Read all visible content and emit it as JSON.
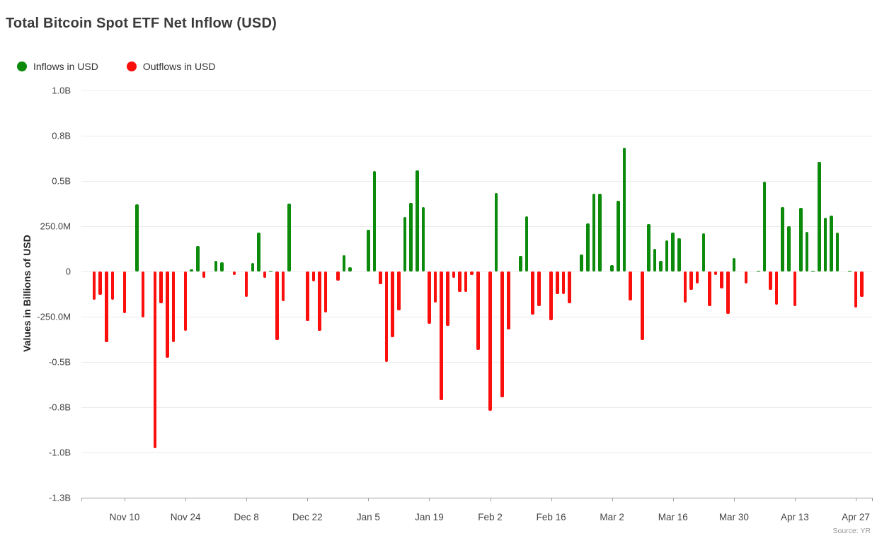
{
  "title": "Total Bitcoin Spot ETF Net Inflow (USD)",
  "legend": {
    "items": [
      {
        "id": "inflows",
        "label": "Inflows in USD",
        "color": "#0b8a0b"
      },
      {
        "id": "outflows",
        "label": "Outflows in USD",
        "color": "#fa0f0c"
      }
    ]
  },
  "y_axis": {
    "title": "Values in Billions of USD",
    "ticks": [
      {
        "label": "1.0B",
        "value": 1000
      },
      {
        "label": "0.8B",
        "value": 750
      },
      {
        "label": "0.5B",
        "value": 500
      },
      {
        "label": "250.0M",
        "value": 250
      },
      {
        "label": "0",
        "value": 0
      },
      {
        "label": "-250.0M",
        "value": -250
      },
      {
        "label": "-0.5B",
        "value": -500
      },
      {
        "label": "-0.8B",
        "value": -750
      },
      {
        "label": "-1.0B",
        "value": -1000
      },
      {
        "label": "-1.3B",
        "value": -1250
      }
    ]
  },
  "x_axis": {
    "ticks": [
      {
        "label": "Nov 10",
        "index": 5
      },
      {
        "label": "Nov 24",
        "index": 15
      },
      {
        "label": "Dec 8",
        "index": 25
      },
      {
        "label": "Dec 22",
        "index": 35
      },
      {
        "label": "Jan 5",
        "index": 45
      },
      {
        "label": "Jan 19",
        "index": 55
      },
      {
        "label": "Feb 2",
        "index": 65
      },
      {
        "label": "Feb 16",
        "index": 75
      },
      {
        "label": "Mar 2",
        "index": 85
      },
      {
        "label": "Mar 16",
        "index": 95
      },
      {
        "label": "Mar 30",
        "index": 105
      },
      {
        "label": "Apr 13",
        "index": 115
      },
      {
        "label": "Apr 27",
        "index": 125
      }
    ]
  },
  "source": "Source: YR",
  "chart_data": {
    "type": "bar",
    "unit": "millions of USD",
    "inflow_color": "#0b8a0b",
    "outflow_color": "#fa0f0c",
    "ylim": [
      -1250,
      1000
    ],
    "grid": true,
    "legend_position": "top-left",
    "bars": [
      {
        "date": "Nov 3",
        "value": -155
      },
      {
        "date": "Nov 4",
        "value": -130
      },
      {
        "date": "Nov 5",
        "value": -390
      },
      {
        "date": "Nov 6",
        "value": -155
      },
      {
        "date": "Nov 7",
        "value": 0
      },
      {
        "date": "Nov 10",
        "value": -230
      },
      {
        "date": "Nov 11",
        "value": 0
      },
      {
        "date": "Nov 12",
        "value": 370
      },
      {
        "date": "Nov 13",
        "value": -255
      },
      {
        "date": "Nov 14",
        "value": 0
      },
      {
        "date": "Nov 17",
        "value": -975
      },
      {
        "date": "Nov 18",
        "value": -175
      },
      {
        "date": "Nov 19",
        "value": -475
      },
      {
        "date": "Nov 20",
        "value": -390
      },
      {
        "date": "Nov 21",
        "value": 0
      },
      {
        "date": "Nov 24",
        "value": -330
      },
      {
        "date": "Nov 25",
        "value": 10
      },
      {
        "date": "Nov 26",
        "value": 140
      },
      {
        "date": "Nov 27",
        "value": -35
      },
      {
        "date": "Nov 28",
        "value": 0
      },
      {
        "date": "Dec 1",
        "value": 60
      },
      {
        "date": "Dec 2",
        "value": 50
      },
      {
        "date": "Dec 3",
        "value": 0
      },
      {
        "date": "Dec 4",
        "value": -20
      },
      {
        "date": "Dec 5",
        "value": 0
      },
      {
        "date": "Dec 8",
        "value": -140
      },
      {
        "date": "Dec 9",
        "value": 45
      },
      {
        "date": "Dec 10",
        "value": 215
      },
      {
        "date": "Dec 11",
        "value": -35
      },
      {
        "date": "Dec 12",
        "value": 5
      },
      {
        "date": "Dec 15",
        "value": -380
      },
      {
        "date": "Dec 16",
        "value": -165
      },
      {
        "date": "Dec 17",
        "value": 375
      },
      {
        "date": "Dec 18",
        "value": 0
      },
      {
        "date": "Dec 19",
        "value": 0
      },
      {
        "date": "Dec 22",
        "value": -275
      },
      {
        "date": "Dec 23",
        "value": -55
      },
      {
        "date": "Dec 24",
        "value": -330
      },
      {
        "date": "Dec 25",
        "value": -225
      },
      {
        "date": "Dec 26",
        "value": 0
      },
      {
        "date": "Dec 29",
        "value": -50
      },
      {
        "date": "Dec 30",
        "value": 90
      },
      {
        "date": "Dec 31",
        "value": 25
      },
      {
        "date": "Jan 1",
        "value": 0
      },
      {
        "date": "Jan 2",
        "value": 0
      },
      {
        "date": "Jan 5",
        "value": 230
      },
      {
        "date": "Jan 6",
        "value": 555
      },
      {
        "date": "Jan 7",
        "value": -70
      },
      {
        "date": "Jan 8",
        "value": -500
      },
      {
        "date": "Jan 9",
        "value": -365
      },
      {
        "date": "Jan 12",
        "value": -215
      },
      {
        "date": "Jan 13",
        "value": 300
      },
      {
        "date": "Jan 14",
        "value": 380
      },
      {
        "date": "Jan 15",
        "value": 560
      },
      {
        "date": "Jan 16",
        "value": 355
      },
      {
        "date": "Jan 19",
        "value": -290
      },
      {
        "date": "Jan 20",
        "value": -170
      },
      {
        "date": "Jan 21",
        "value": -710
      },
      {
        "date": "Jan 22",
        "value": -300
      },
      {
        "date": "Jan 23",
        "value": -35
      },
      {
        "date": "Jan 26",
        "value": -115
      },
      {
        "date": "Jan 27",
        "value": -115
      },
      {
        "date": "Jan 28",
        "value": -20
      },
      {
        "date": "Jan 29",
        "value": -435
      },
      {
        "date": "Jan 30",
        "value": 0
      },
      {
        "date": "Feb 2",
        "value": -770
      },
      {
        "date": "Feb 3",
        "value": 435
      },
      {
        "date": "Feb 4",
        "value": -695
      },
      {
        "date": "Feb 5",
        "value": -320
      },
      {
        "date": "Feb 6",
        "value": 0
      },
      {
        "date": "Feb 9",
        "value": 85
      },
      {
        "date": "Feb 10",
        "value": 305
      },
      {
        "date": "Feb 11",
        "value": -240
      },
      {
        "date": "Feb 12",
        "value": -190
      },
      {
        "date": "Feb 13",
        "value": 0
      },
      {
        "date": "Feb 16",
        "value": -270
      },
      {
        "date": "Feb 17",
        "value": -125
      },
      {
        "date": "Feb 18",
        "value": -125
      },
      {
        "date": "Feb 19",
        "value": -175
      },
      {
        "date": "Feb 20",
        "value": 0
      },
      {
        "date": "Feb 23",
        "value": 95
      },
      {
        "date": "Feb 24",
        "value": 265
      },
      {
        "date": "Feb 25",
        "value": 430
      },
      {
        "date": "Feb 26",
        "value": 430
      },
      {
        "date": "Feb 27",
        "value": 0
      },
      {
        "date": "Mar 2",
        "value": 35
      },
      {
        "date": "Mar 3",
        "value": 390
      },
      {
        "date": "Mar 4",
        "value": 685
      },
      {
        "date": "Mar 5",
        "value": -160
      },
      {
        "date": "Mar 6",
        "value": 0
      },
      {
        "date": "Mar 9",
        "value": -380
      },
      {
        "date": "Mar 10",
        "value": 260
      },
      {
        "date": "Mar 11",
        "value": 125
      },
      {
        "date": "Mar 12",
        "value": 60
      },
      {
        "date": "Mar 13",
        "value": 170
      },
      {
        "date": "Mar 16",
        "value": 215
      },
      {
        "date": "Mar 17",
        "value": 185
      },
      {
        "date": "Mar 18",
        "value": -170
      },
      {
        "date": "Mar 19",
        "value": -100
      },
      {
        "date": "Mar 20",
        "value": -65
      },
      {
        "date": "Mar 23",
        "value": 210
      },
      {
        "date": "Mar 24",
        "value": -190
      },
      {
        "date": "Mar 25",
        "value": -20
      },
      {
        "date": "Mar 26",
        "value": -95
      },
      {
        "date": "Mar 27",
        "value": -235
      },
      {
        "date": "Mar 30",
        "value": 75
      },
      {
        "date": "Mar 31",
        "value": 0
      },
      {
        "date": "Apr 1",
        "value": -65
      },
      {
        "date": "Apr 2",
        "value": 0
      },
      {
        "date": "Apr 3",
        "value": 5
      },
      {
        "date": "Apr 6",
        "value": 495
      },
      {
        "date": "Apr 7",
        "value": -100
      },
      {
        "date": "Apr 8",
        "value": -185
      },
      {
        "date": "Apr 9",
        "value": 355
      },
      {
        "date": "Apr 10",
        "value": 250
      },
      {
        "date": "Apr 13",
        "value": -190
      },
      {
        "date": "Apr 14",
        "value": 350
      },
      {
        "date": "Apr 15",
        "value": 220
      },
      {
        "date": "Apr 16",
        "value": 5
      },
      {
        "date": "Apr 17",
        "value": 605
      },
      {
        "date": "Apr 20",
        "value": 295
      },
      {
        "date": "Apr 21",
        "value": 310
      },
      {
        "date": "Apr 22",
        "value": 215
      },
      {
        "date": "Apr 23",
        "value": 0
      },
      {
        "date": "Apr 24",
        "value": 5
      },
      {
        "date": "Apr 27",
        "value": -200
      },
      {
        "date": "Apr 28",
        "value": -140
      }
    ]
  }
}
